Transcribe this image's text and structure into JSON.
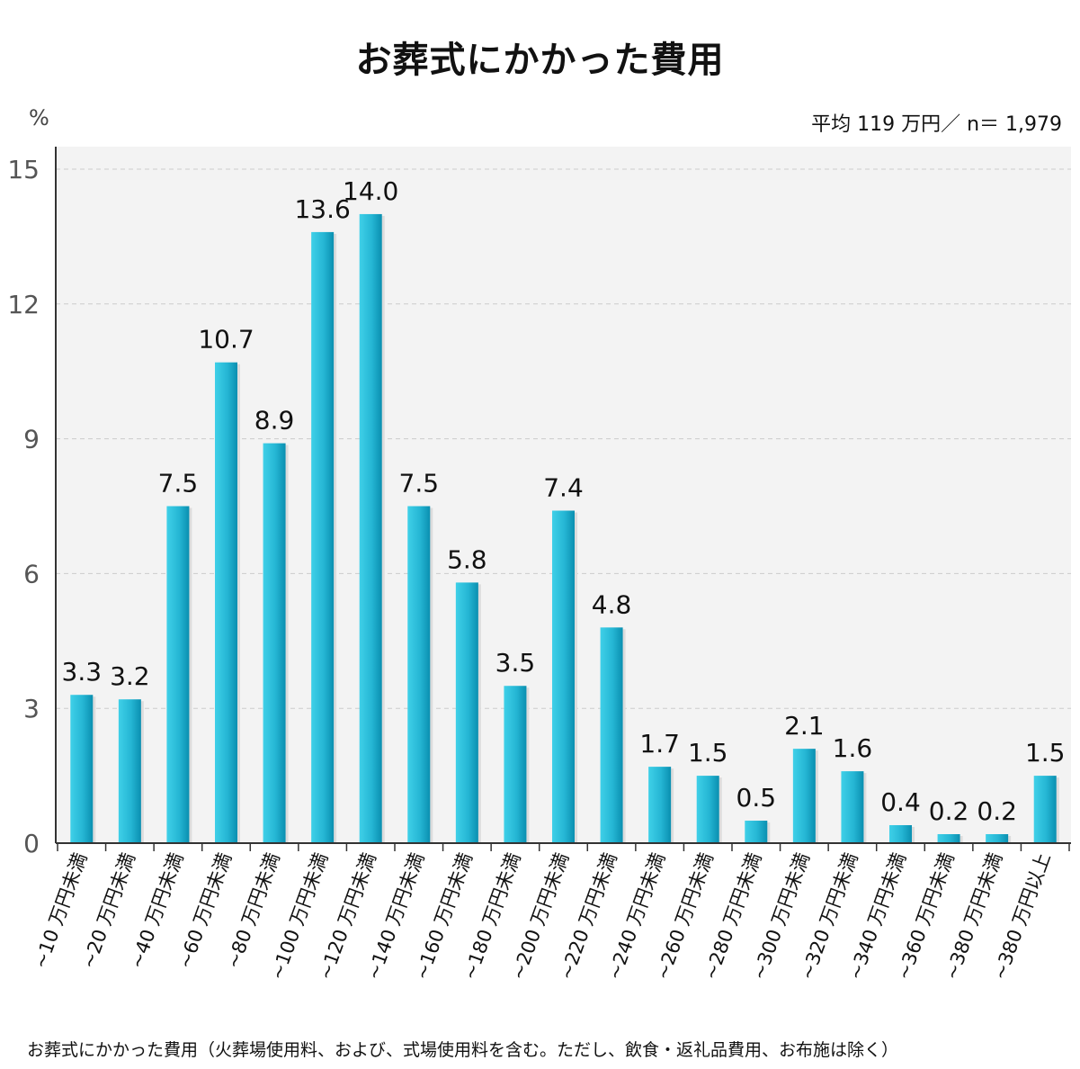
{
  "title": "お葬式にかかった費用",
  "unit": "%",
  "summary": "平均 119 万円／ n＝ 1,979",
  "footnote": "お葬式にかかった費用（火葬場使用料、および、式場使用料を含む。ただし、飲食・返礼品費用、お布施は除く）",
  "colors": {
    "bar": "#2bbcd8",
    "bar_dark": "#0a8fb0",
    "plot_bg": "#f3f3f3",
    "grid": "#cccccc"
  },
  "chart_data": {
    "type": "bar",
    "title": "お葬式にかかった費用",
    "ylabel": "%",
    "ylim": [
      0,
      15
    ],
    "yticks": [
      0,
      3,
      6,
      9,
      12,
      15
    ],
    "grid": true,
    "categories": [
      "~10 万円未満",
      "~20 万円未満",
      "~40 万円未満",
      "~60 万円未満",
      "~80 万円未満",
      "~100 万円未満",
      "~120 万円未満",
      "~140 万円未満",
      "~160 万円未満",
      "~180 万円未満",
      "~200 万円未満",
      "~220 万円未満",
      "~240 万円未満",
      "~260 万円未満",
      "~280 万円未満",
      "~300 万円未満",
      "~320 万円未満",
      "~340 万円未満",
      "~360 万円未満",
      "~380 万円未満",
      "~380 万円以上"
    ],
    "values": [
      3.3,
      3.2,
      7.5,
      10.7,
      8.9,
      13.6,
      14.0,
      7.5,
      5.8,
      3.5,
      7.4,
      4.8,
      1.7,
      1.5,
      0.5,
      2.1,
      1.6,
      0.4,
      0.2,
      0.2,
      1.5
    ],
    "value_labels": [
      "3.3",
      "3.2",
      "7.5",
      "10.7",
      "8.9",
      "13.6",
      "14.0",
      "7.5",
      "5.8",
      "3.5",
      "7.4",
      "4.8",
      "1.7",
      "1.5",
      "0.5",
      "2.1",
      "1.6",
      "0.4",
      "0.2",
      "0.2",
      "1.5"
    ]
  }
}
